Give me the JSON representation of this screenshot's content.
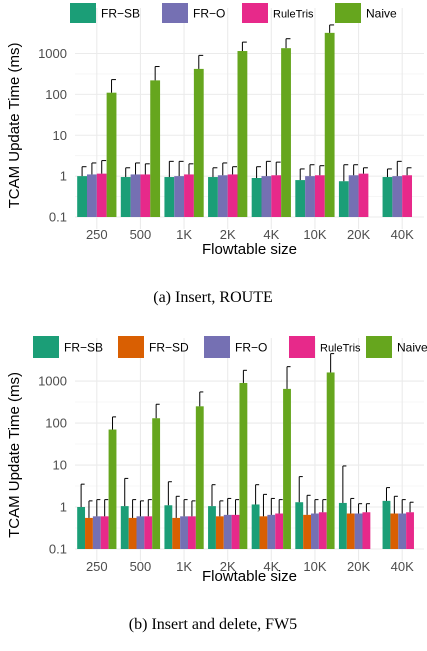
{
  "chart_data": [
    {
      "type": "bar",
      "caption": "(a) Insert, ROUTE",
      "xlabel": "Flowtable size",
      "ylabel": "TCAM Update Time (ms)",
      "yscale": "log",
      "ylim": [
        0.1,
        3000
      ],
      "yticks": [
        "0.1",
        "1",
        "10",
        "100",
        "1000"
      ],
      "legend_position": "top",
      "categories": [
        "250",
        "500",
        "1K",
        "2K",
        "4K",
        "10K",
        "20K",
        "40K"
      ],
      "series": [
        {
          "name": "FR−SB",
          "color": "#1b9e77",
          "values": [
            1.0,
            0.95,
            0.95,
            0.95,
            0.9,
            0.8,
            0.75,
            0.95
          ],
          "error": [
            1.7,
            1.6,
            2.3,
            1.6,
            1.7,
            1.5,
            1.9,
            1.5
          ]
        },
        {
          "name": "FR−O",
          "color": "#7570b3",
          "values": [
            1.1,
            1.1,
            1.0,
            1.05,
            1.0,
            1.0,
            1.05,
            1.0
          ],
          "error": [
            2.1,
            2.1,
            2.3,
            2.1,
            2.3,
            1.9,
            1.9,
            2.3
          ]
        },
        {
          "name": "RuleTris",
          "color": "#e7298a",
          "values": [
            1.15,
            1.1,
            1.1,
            1.1,
            1.05,
            1.05,
            1.15,
            1.05
          ],
          "error": [
            2.4,
            2.0,
            2.0,
            1.7,
            2.2,
            1.8,
            1.6,
            1.6
          ]
        },
        {
          "name": "Naive",
          "color": "#66a61e",
          "values": [
            110,
            220,
            420,
            1150,
            1350,
            3200,
            null,
            null
          ],
          "error": [
            230,
            480,
            900,
            1900,
            2300,
            5000,
            null,
            null
          ]
        }
      ]
    },
    {
      "type": "bar",
      "caption": "(b) Insert and delete, FW5",
      "xlabel": "Flowtable size",
      "ylabel": "TCAM Update Time (ms)",
      "yscale": "log",
      "ylim": [
        0.1,
        3000
      ],
      "yticks": [
        "0.1",
        "1",
        "10",
        "100",
        "1000"
      ],
      "legend_position": "top",
      "categories": [
        "250",
        "500",
        "1K",
        "2K",
        "4K",
        "10K",
        "20K",
        "40K"
      ],
      "series": [
        {
          "name": "FR−SB",
          "color": "#1b9e77",
          "values": [
            1.0,
            1.05,
            1.1,
            1.05,
            1.15,
            1.3,
            1.25,
            1.4
          ],
          "error": [
            3.5,
            4.8,
            4.0,
            3.4,
            3.4,
            5.3,
            9.5,
            2.9
          ]
        },
        {
          "name": "FR−SD",
          "color": "#d95f02",
          "values": [
            0.55,
            0.55,
            0.55,
            0.6,
            0.6,
            0.65,
            0.7,
            0.7
          ],
          "error": [
            1.4,
            1.5,
            1.8,
            1.4,
            2.0,
            1.9,
            1.6,
            1.8
          ]
        },
        {
          "name": "FR−O",
          "color": "#7570b3",
          "values": [
            0.6,
            0.6,
            0.6,
            0.65,
            0.65,
            0.7,
            0.7,
            0.7
          ],
          "error": [
            1.5,
            1.4,
            1.5,
            1.6,
            1.6,
            1.5,
            1.2,
            1.5
          ]
        },
        {
          "name": "RuleTris",
          "color": "#e7298a",
          "values": [
            0.6,
            0.6,
            0.6,
            0.65,
            0.7,
            0.75,
            0.75,
            0.75
          ],
          "error": [
            1.5,
            1.5,
            1.4,
            1.5,
            1.5,
            1.5,
            1.2,
            1.3
          ]
        },
        {
          "name": "Naive",
          "color": "#66a61e",
          "values": [
            70,
            130,
            250,
            900,
            650,
            1600,
            null,
            null
          ],
          "error": [
            140,
            280,
            550,
            1800,
            2200,
            4500,
            null,
            null
          ]
        }
      ]
    }
  ]
}
